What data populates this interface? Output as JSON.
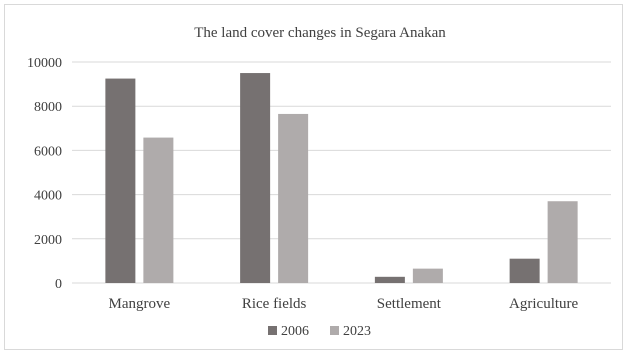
{
  "chart_data": {
    "type": "bar",
    "title": "The land cover changes in Segara Anakan",
    "categories": [
      "Mangrove",
      "Rice fields",
      "Settlement",
      "Agriculture"
    ],
    "series": [
      {
        "name": "2006",
        "values": [
          9250,
          9500,
          280,
          1100
        ],
        "color": "#767171"
      },
      {
        "name": "2023",
        "values": [
          6580,
          7650,
          650,
          3700
        ],
        "color": "#afabab"
      }
    ],
    "ylim": [
      0,
      10000
    ],
    "yticks": [
      "0",
      "2000",
      "4000",
      "6000",
      "8000",
      "10000"
    ],
    "grid": true,
    "legend": "bottom",
    "colors": {
      "gridline": "#d9d9d9",
      "text": "#404040",
      "border": "#d9d9d9"
    }
  }
}
